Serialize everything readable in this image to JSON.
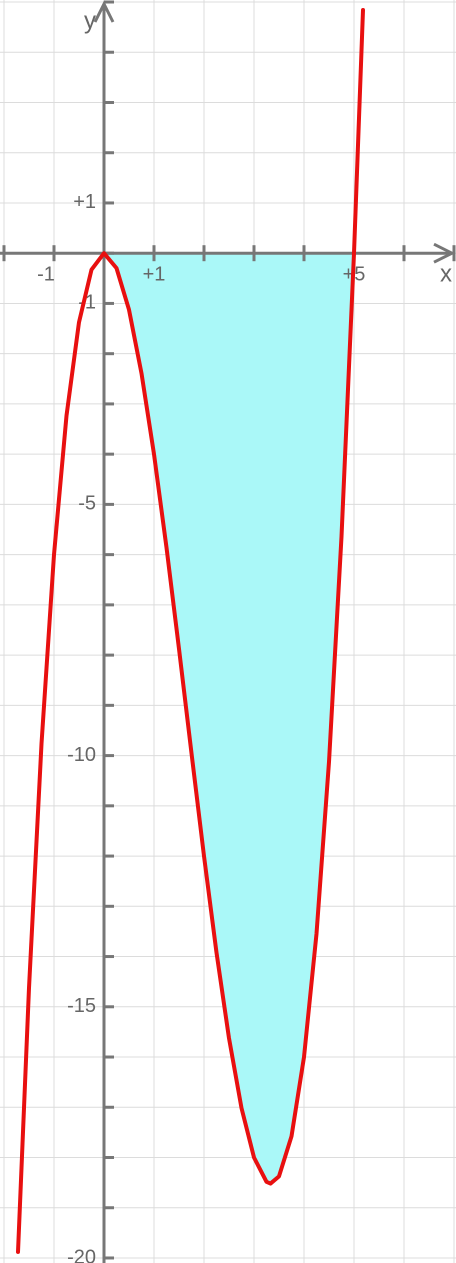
{
  "chart_data": {
    "type": "line",
    "x_label": "x",
    "y_label": "y",
    "xlim": [
      -2.08,
      7.04
    ],
    "ylim": [
      -20.1,
      5.04
    ],
    "xticks": [
      -1,
      {
        "value": 1,
        "label": "+1"
      },
      {
        "value": 5,
        "label": "+5"
      }
    ],
    "yticks": [
      {
        "value": 1,
        "label": "+1"
      },
      -1,
      -5,
      -10,
      -15,
      -20
    ],
    "xminor": [
      -2,
      -1,
      0,
      1,
      2,
      3,
      4,
      5,
      6,
      7
    ],
    "yminor": [
      5,
      4,
      3,
      2,
      1,
      0,
      -1,
      -2,
      -3,
      -4,
      -5,
      -6,
      -7,
      -8,
      -9,
      -10,
      -11,
      -12,
      -13,
      -14,
      -15,
      -16,
      -17,
      -18,
      -19,
      -20
    ],
    "grid": true,
    "shade": {
      "from": 0,
      "to": 5,
      "color": "#aaf8f8"
    },
    "series": [
      {
        "color": "#e81010",
        "x": [
          -1.72,
          -1.5,
          -1.25,
          -1,
          -0.75,
          -0.5,
          -0.25,
          0,
          0.25,
          0.5,
          0.75,
          1,
          1.25,
          1.5,
          1.75,
          2,
          2.25,
          2.5,
          2.75,
          3,
          3.25,
          3.33,
          3.5,
          3.75,
          4,
          4.25,
          4.5,
          4.75,
          5,
          5.18
        ],
        "values": [
          -19.88,
          -14.625,
          -9.766,
          -6,
          -3.234,
          -1.375,
          -0.328,
          0,
          -0.297,
          -1.125,
          -2.391,
          -4,
          -5.859,
          -7.875,
          -9.953,
          -12,
          -13.922,
          -15.625,
          -17.016,
          -18,
          -18.484,
          -18.519,
          -18.375,
          -17.578,
          -16,
          -13.547,
          -10.125,
          -5.641,
          0,
          4.84
        ]
      }
    ]
  }
}
